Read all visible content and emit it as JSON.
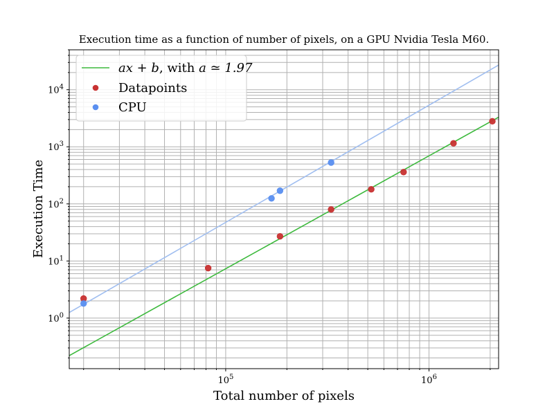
{
  "chart_data": {
    "type": "scatter",
    "title": "Execution time as a function of number of pixels, on a GPU Nvidia Tesla M60.",
    "xlabel": "Total number of pixels",
    "ylabel": "Execution Time",
    "xscale": "log",
    "yscale": "log",
    "xlim": [
      17000,
      2200000
    ],
    "ylim": [
      0.13,
      50000
    ],
    "grid": true,
    "legend_position": "upper-left",
    "x_tick_labels": [
      {
        "value": 100000,
        "base": "10",
        "exp": "5"
      },
      {
        "value": 1000000,
        "base": "10",
        "exp": "6"
      }
    ],
    "y_tick_labels": [
      {
        "value": 1,
        "base": "10",
        "exp": "0"
      },
      {
        "value": 10,
        "base": "10",
        "exp": "1"
      },
      {
        "value": 100,
        "base": "10",
        "exp": "2"
      },
      {
        "value": 1000,
        "base": "10",
        "exp": "3"
      },
      {
        "value": 10000,
        "base": "10",
        "exp": "4"
      }
    ],
    "series": [
      {
        "name": "ax + b, with a ≃ 1.97",
        "kind": "line",
        "color": "#3cb93c",
        "x": [
          17000,
          2200000
        ],
        "y": [
          0.22,
          3300
        ]
      },
      {
        "name": "Datapoints",
        "kind": "scatter",
        "color": "#c83232",
        "x": [
          20000,
          82000,
          185000,
          330000,
          520000,
          750000,
          1320000,
          2050000
        ],
        "y": [
          2.2,
          7.5,
          27,
          80,
          180,
          360,
          1150,
          2800
        ]
      },
      {
        "name": "CPU",
        "kind": "scatter",
        "color": "#5a8ff0",
        "x": [
          20000,
          168000,
          185000,
          330000
        ],
        "y": [
          1.8,
          125,
          170,
          530
        ]
      },
      {
        "kind": "line",
        "color": "#a0bef0",
        "x": [
          17000,
          2200000
        ],
        "y": [
          1.25,
          27000
        ]
      }
    ],
    "legend": [
      {
        "math": "ax + b",
        "text": ", with ",
        "math2": "a ≃ 1.97"
      },
      {
        "text": "Datapoints"
      },
      {
        "text": "CPU"
      }
    ]
  }
}
